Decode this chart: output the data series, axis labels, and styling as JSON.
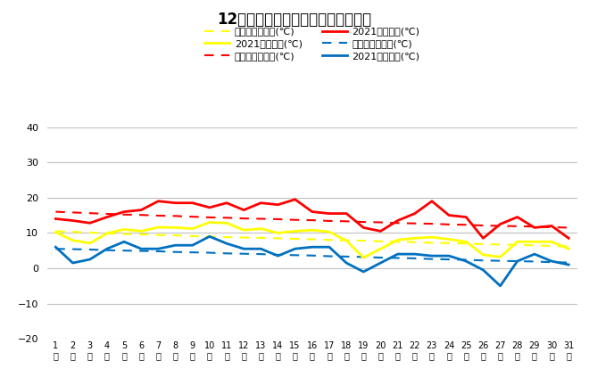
{
  "title": "12月最高・最低・平均気温（日別）",
  "days": [
    1,
    2,
    3,
    4,
    5,
    6,
    7,
    8,
    9,
    10,
    11,
    12,
    13,
    14,
    15,
    16,
    17,
    18,
    19,
    20,
    21,
    22,
    23,
    24,
    25,
    26,
    27,
    28,
    29,
    30,
    31
  ],
  "day_labels": [
    "1",
    "2",
    "3",
    "4",
    "5",
    "6",
    "7",
    "8",
    "9",
    "10",
    "11",
    "12",
    "13",
    "14",
    "15",
    "16",
    "17",
    "18",
    "19",
    "20",
    "21",
    "22",
    "23",
    "24",
    "25",
    "26",
    "27",
    "28",
    "29",
    "30",
    "31"
  ],
  "avg_normal": [
    10.5,
    10.3,
    10.1,
    9.9,
    9.7,
    9.6,
    9.4,
    9.3,
    9.1,
    9.0,
    8.8,
    8.7,
    8.6,
    8.5,
    8.3,
    8.2,
    8.0,
    7.9,
    7.8,
    7.6,
    7.5,
    7.4,
    7.2,
    7.1,
    7.0,
    6.8,
    6.7,
    6.6,
    6.5,
    6.3,
    6.2
  ],
  "avg_2021": [
    10.2,
    7.9,
    7.1,
    9.9,
    11.0,
    10.5,
    11.6,
    11.5,
    11.2,
    13.0,
    12.8,
    10.8,
    11.2,
    10.0,
    10.5,
    10.8,
    10.3,
    7.8,
    3.0,
    5.5,
    8.0,
    8.5,
    8.8,
    8.2,
    7.5,
    3.8,
    3.2,
    7.5,
    7.5,
    7.5,
    5.5
  ],
  "high_normal": [
    16.0,
    15.8,
    15.6,
    15.4,
    15.2,
    15.1,
    14.9,
    14.8,
    14.6,
    14.4,
    14.3,
    14.1,
    14.0,
    13.9,
    13.7,
    13.6,
    13.4,
    13.3,
    13.1,
    13.0,
    12.8,
    12.7,
    12.6,
    12.4,
    12.3,
    12.1,
    12.0,
    11.9,
    11.8,
    11.6,
    11.5
  ],
  "high_2021": [
    14.0,
    13.5,
    12.8,
    14.5,
    16.0,
    16.5,
    19.0,
    18.5,
    18.5,
    17.2,
    18.5,
    16.5,
    18.5,
    18.0,
    19.5,
    16.0,
    15.5,
    15.5,
    11.5,
    10.5,
    13.5,
    15.5,
    19.0,
    15.0,
    14.5,
    8.5,
    12.5,
    14.5,
    11.5,
    12.0,
    8.5
  ],
  "low_normal": [
    5.5,
    5.4,
    5.3,
    5.1,
    5.0,
    4.9,
    4.8,
    4.6,
    4.5,
    4.4,
    4.2,
    4.1,
    4.0,
    3.8,
    3.7,
    3.6,
    3.4,
    3.3,
    3.2,
    3.0,
    2.9,
    2.8,
    2.6,
    2.5,
    2.4,
    2.2,
    2.1,
    2.0,
    1.9,
    1.7,
    1.6
  ],
  "low_2021": [
    6.0,
    1.5,
    2.5,
    5.5,
    7.5,
    5.5,
    5.5,
    6.5,
    6.5,
    9.0,
    7.0,
    5.5,
    5.5,
    3.5,
    5.5,
    6.0,
    6.0,
    1.5,
    -1.0,
    1.5,
    4.0,
    4.0,
    3.5,
    3.5,
    2.0,
    -0.5,
    -5.0,
    2.0,
    4.0,
    2.0,
    1.0
  ],
  "color_avg_normal": "#FFFF00",
  "color_avg_2021": "#FFFF00",
  "color_high_normal": "#FF0000",
  "color_high_2021": "#FF0000",
  "color_low_normal": "#0070C0",
  "color_low_2021": "#0070C0",
  "ylim": [
    -20,
    40
  ],
  "yticks": [
    -20,
    -10,
    0,
    10,
    20,
    30,
    40
  ],
  "bg_color": "#FFFFFF",
  "plot_bg_color": "#FFFFFF",
  "grid_color": "#C0C0C0",
  "legend_avg_normal": "平均気温平年値(℃)",
  "legend_avg_2021": "2021平均気温(℃)",
  "legend_high_normal": "最高気温平年値(℃)",
  "legend_high_2021": "2021最高気温(℃)",
  "legend_low_normal": "最低気温平年値(℃)",
  "legend_low_2021": "2021最低気温(℃)"
}
